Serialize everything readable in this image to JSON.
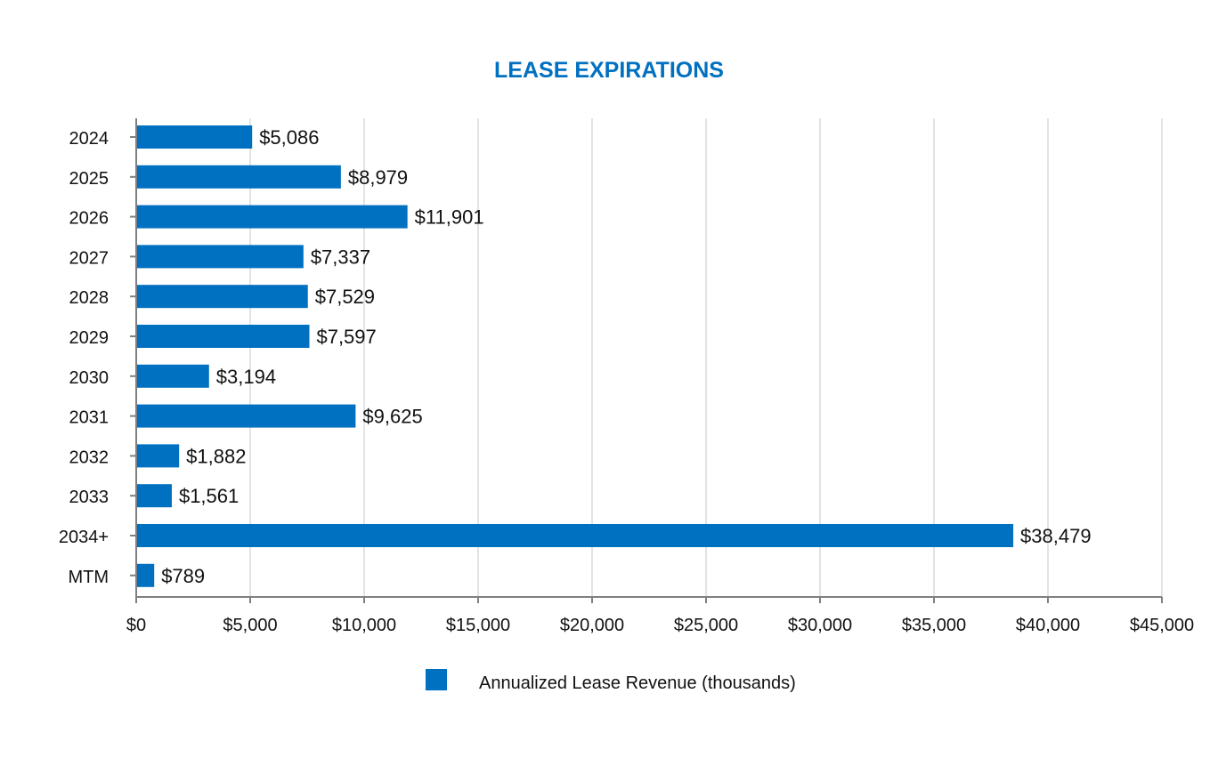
{
  "chart_data": {
    "type": "bar",
    "orientation": "horizontal",
    "title": "LEASE EXPIRATIONS",
    "categories": [
      "2024",
      "2025",
      "2026",
      "2027",
      "2028",
      "2029",
      "2030",
      "2031",
      "2032",
      "2033",
      "2034+",
      "MTM"
    ],
    "values": [
      5086,
      8979,
      11901,
      7337,
      7529,
      7597,
      3194,
      9625,
      1882,
      1561,
      38479,
      789
    ],
    "data_labels": [
      "$5,086",
      "$8,979",
      "$11,901",
      "$7,337",
      "$7,529",
      "$7,597",
      "$3,194",
      "$9,625",
      "$1,882",
      "$1,561",
      "$38,479",
      "$789"
    ],
    "xlim": [
      0,
      45000
    ],
    "x_ticks": [
      0,
      5000,
      10000,
      15000,
      20000,
      25000,
      30000,
      35000,
      40000,
      45000
    ],
    "x_tick_labels": [
      "$0",
      "$5,000",
      "$10,000",
      "$15,000",
      "$20,000",
      "$25,000",
      "$30,000",
      "$35,000",
      "$40,000",
      "$45,000"
    ],
    "xlabel": "",
    "ylabel": "",
    "grid": true,
    "legend": {
      "position": "bottom",
      "entries": [
        {
          "label": "Annualized Lease Revenue (thousands)"
        }
      ]
    },
    "colors": {
      "bar": "#0070C0",
      "title": "#0070C0",
      "grid": "#E3E3E3",
      "axis": "#808080"
    }
  }
}
